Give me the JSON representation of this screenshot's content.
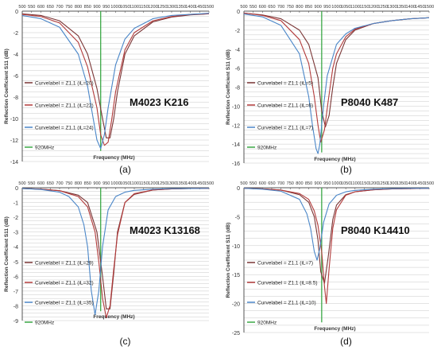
{
  "colors": {
    "series": [
      "#7a3535",
      "#b23a3a",
      "#4a86c8"
    ],
    "marker": "#3aa845",
    "grid": "#c8c8c8",
    "axis": "#555555"
  },
  "chart_data": [
    {
      "type": "line",
      "panel_label": "(a)",
      "annotation": "M4023 K216",
      "xlabel": "Frequency (MHz)",
      "ylabel": "Reflection Coefficient S11 (dB)",
      "xlim": [
        500,
        1500
      ],
      "ylim": [
        -14,
        0
      ],
      "x_ticks": [
        500,
        550,
        600,
        650,
        700,
        750,
        800,
        850,
        900,
        950,
        1000,
        1050,
        1100,
        1150,
        1200,
        1250,
        1300,
        1350,
        1400,
        1450,
        1500
      ],
      "y_ticks": [
        0,
        -2,
        -4,
        -6,
        -8,
        -10,
        -12,
        -14
      ],
      "marker": {
        "label": "920MHz",
        "x": 920
      },
      "series": [
        {
          "name": "Curvelabel = Z1,1 (iL=20)",
          "x": [
            500,
            600,
            700,
            800,
            850,
            900,
            930,
            950,
            970,
            990,
            1010,
            1050,
            1100,
            1200,
            1300,
            1400,
            1500
          ],
          "y": [
            -0.25,
            -0.4,
            -0.9,
            -2.3,
            -4.0,
            -7.2,
            -10.0,
            -11.8,
            -11.8,
            -10.0,
            -7.5,
            -4.0,
            -2.3,
            -1.0,
            -0.55,
            -0.35,
            -0.25
          ]
        },
        {
          "name": "Curvelabel = Z1,1 (iL=22)",
          "x": [
            500,
            600,
            700,
            800,
            850,
            900,
            920,
            940,
            960,
            980,
            1000,
            1050,
            1100,
            1200,
            1300,
            1400,
            1500
          ],
          "y": [
            -0.3,
            -0.5,
            -1.1,
            -2.9,
            -5.2,
            -9.0,
            -11.5,
            -12.5,
            -12.2,
            -10.0,
            -7.5,
            -3.6,
            -2.0,
            -0.9,
            -0.5,
            -0.3,
            -0.25
          ]
        },
        {
          "name": "Curvelabel = Z1,1 (iL=24)",
          "x": [
            500,
            600,
            700,
            800,
            850,
            880,
            900,
            920,
            940,
            960,
            1000,
            1050,
            1100,
            1200,
            1300,
            1400,
            1500
          ],
          "y": [
            -0.4,
            -0.7,
            -1.5,
            -4.0,
            -7.0,
            -10.0,
            -12.0,
            -12.8,
            -11.5,
            -9.0,
            -5.0,
            -2.6,
            -1.6,
            -0.7,
            -0.4,
            -0.3,
            -0.2
          ]
        }
      ]
    },
    {
      "type": "line",
      "panel_label": "(b)",
      "annotation": "P8040 K487",
      "xlabel": "Frequency (MHz)",
      "ylabel": "Reflection Coefficient S11 (dB)",
      "xlim": [
        500,
        1500
      ],
      "ylim": [
        -16,
        0
      ],
      "x_ticks": [
        500,
        550,
        600,
        650,
        700,
        750,
        800,
        850,
        900,
        950,
        1000,
        1050,
        1100,
        1150,
        1200,
        1250,
        1300,
        1350,
        1400,
        1450,
        1500
      ],
      "y_ticks": [
        0,
        -2,
        -4,
        -6,
        -8,
        -10,
        -12,
        -14,
        -16
      ],
      "marker": {
        "label": "920MHz",
        "x": 920
      },
      "series": [
        {
          "name": "Curvelabel = Z1,1 (iL=5)",
          "x": [
            500,
            600,
            700,
            800,
            850,
            900,
            920,
            940,
            960,
            980,
            1000,
            1050,
            1100,
            1200,
            1300,
            1400,
            1500
          ],
          "y": [
            -0.2,
            -0.4,
            -0.8,
            -2.0,
            -3.5,
            -7.0,
            -10.5,
            -12.2,
            -11.0,
            -8.0,
            -5.5,
            -3.0,
            -2.0,
            -1.3,
            -1.0,
            -0.8,
            -0.7
          ]
        },
        {
          "name": "Curvelabel = Z1,1 (iL=6)",
          "x": [
            500,
            600,
            700,
            800,
            850,
            880,
            900,
            915,
            935,
            955,
            980,
            1000,
            1050,
            1100,
            1200,
            1300,
            1400,
            1500
          ],
          "y": [
            -0.2,
            -0.45,
            -1.0,
            -3.0,
            -5.5,
            -9.0,
            -12.0,
            -13.8,
            -12.5,
            -9.5,
            -6.0,
            -4.5,
            -2.7,
            -1.9,
            -1.3,
            -1.0,
            -0.8,
            -0.7
          ]
        },
        {
          "name": "Curvelabel = Z1,1 (iL=7)",
          "x": [
            500,
            600,
            700,
            800,
            850,
            870,
            890,
            900,
            910,
            930,
            950,
            1000,
            1050,
            1100,
            1200,
            1300,
            1400,
            1500
          ],
          "y": [
            -0.3,
            -0.6,
            -1.5,
            -4.5,
            -9.0,
            -12.0,
            -14.5,
            -15.0,
            -14.0,
            -10.0,
            -6.8,
            -3.5,
            -2.4,
            -1.8,
            -1.3,
            -1.0,
            -0.8,
            -0.7
          ]
        }
      ]
    },
    {
      "type": "line",
      "panel_label": "(c)",
      "annotation": "M4023 K13168",
      "xlabel": "Frequency (MHz)",
      "ylabel": "Reflection Coefficient S11 (dB)",
      "xlim": [
        500,
        1500
      ],
      "ylim": [
        -9,
        0
      ],
      "x_ticks": [
        500,
        550,
        600,
        650,
        700,
        750,
        800,
        850,
        900,
        950,
        1000,
        1050,
        1100,
        1150,
        1200,
        1250,
        1300,
        1350,
        1400,
        1450,
        1500
      ],
      "y_ticks": [
        0,
        -1,
        -2,
        -3,
        -4,
        -5,
        -6,
        -7,
        -8,
        -9
      ],
      "marker": {
        "label": "920MHz",
        "x": 920
      },
      "series": [
        {
          "name": "Curvelabel = Z1,1 (iL=29)",
          "x": [
            500,
            600,
            700,
            800,
            850,
            900,
            930,
            950,
            970,
            990,
            1010,
            1050,
            1100,
            1200,
            1300,
            1400,
            1500
          ],
          "y": [
            -0.05,
            -0.1,
            -0.2,
            -0.5,
            -1.0,
            -3.0,
            -6.0,
            -8.2,
            -8.2,
            -5.8,
            -3.0,
            -1.0,
            -0.45,
            -0.15,
            -0.08,
            -0.05,
            -0.04
          ]
        },
        {
          "name": "Curvelabel = Z1,1 (iL=32)",
          "x": [
            500,
            600,
            700,
            800,
            850,
            890,
            910,
            930,
            950,
            970,
            990,
            1010,
            1050,
            1100,
            1200,
            1300,
            1400,
            1500
          ],
          "y": [
            -0.05,
            -0.1,
            -0.2,
            -0.6,
            -1.3,
            -3.0,
            -5.0,
            -7.5,
            -8.8,
            -8.0,
            -5.5,
            -3.2,
            -1.0,
            -0.4,
            -0.15,
            -0.08,
            -0.05,
            -0.04
          ]
        },
        {
          "name": "Curvelabel = Z1,1 (iL=35)",
          "x": [
            500,
            600,
            700,
            750,
            800,
            830,
            850,
            870,
            890,
            910,
            930,
            960,
            1000,
            1050,
            1100,
            1200,
            1300,
            1400,
            1500
          ],
          "y": [
            -0.05,
            -0.12,
            -0.3,
            -0.6,
            -1.3,
            -2.5,
            -4.0,
            -7.0,
            -8.6,
            -7.0,
            -4.0,
            -1.5,
            -0.6,
            -0.3,
            -0.18,
            -0.1,
            -0.06,
            -0.05,
            -0.04
          ]
        }
      ]
    },
    {
      "type": "line",
      "panel_label": "(d)",
      "annotation": "P8040 K14410",
      "xlabel": "Frequency (MHz)",
      "ylabel": "Reflection Coefficient S11 (dB)",
      "xlim": [
        500,
        1500
      ],
      "ylim": [
        -25,
        0
      ],
      "x_ticks": [
        500,
        550,
        600,
        650,
        700,
        750,
        800,
        850,
        900,
        950,
        1000,
        1050,
        1100,
        1150,
        1200,
        1250,
        1300,
        1350,
        1400,
        1450,
        1500
      ],
      "y_ticks": [
        0,
        -5,
        -10,
        -15,
        -20,
        -25
      ],
      "marker": {
        "label": "920MHz",
        "x": 920
      },
      "series": [
        {
          "name": "Curvelabel = Z1,1 (iL=7)",
          "x": [
            500,
            600,
            700,
            800,
            850,
            880,
            900,
            915,
            935,
            955,
            980,
            1000,
            1050,
            1100,
            1200,
            1300,
            1400,
            1500
          ],
          "y": [
            -0.1,
            -0.2,
            -0.4,
            -1.2,
            -2.5,
            -5.0,
            -9.0,
            -14.5,
            -16.5,
            -12.0,
            -5.5,
            -3.0,
            -1.2,
            -0.7,
            -0.35,
            -0.2,
            -0.15,
            -0.1
          ]
        },
        {
          "name": "Curvelabel = Z1,1 (iL=8.5)",
          "x": [
            500,
            600,
            700,
            800,
            850,
            880,
            900,
            920,
            935,
            945,
            960,
            980,
            1000,
            1050,
            1100,
            1200,
            1300,
            1400,
            1500
          ],
          "y": [
            -0.1,
            -0.2,
            -0.4,
            -1.0,
            -2.0,
            -4.0,
            -6.5,
            -11.0,
            -17.0,
            -20.0,
            -14.0,
            -7.0,
            -3.8,
            -1.3,
            -0.7,
            -0.35,
            -0.2,
            -0.15,
            -0.1
          ]
        },
        {
          "name": "Curvelabel = Z1,1 (iL=10)",
          "x": [
            500,
            600,
            700,
            800,
            840,
            860,
            880,
            895,
            910,
            930,
            960,
            1000,
            1050,
            1100,
            1200,
            1300,
            1400,
            1500
          ],
          "y": [
            -0.1,
            -0.25,
            -0.6,
            -2.0,
            -4.5,
            -7.0,
            -11.0,
            -12.5,
            -10.5,
            -6.0,
            -2.8,
            -1.3,
            -0.7,
            -0.45,
            -0.25,
            -0.15,
            -0.1,
            -0.1
          ]
        }
      ]
    }
  ]
}
